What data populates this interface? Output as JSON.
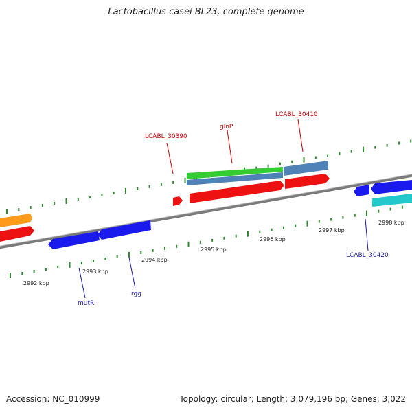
{
  "title": "Lactobacillus casei BL23, complete genome",
  "footer": {
    "accession": "Accession: NC_010999",
    "topology": "Topology: circular; Length: 3,079,196 bp; Genes: 3,022"
  },
  "colors": {
    "backbone": "#7a7a7a",
    "tick": "#2e8b2e",
    "forward_label": "#cc0000",
    "reverse_label": "#1a1aaa",
    "red_gene": "#ee1111",
    "blue_gene": "#1a1aee",
    "green_gene": "#33cc33",
    "steel_gene": "#4f83b8",
    "cyan_gene": "#22c8cc",
    "orange_gene": "#ff9a1a"
  },
  "scale_labels": [
    "2992 kbp",
    "2993 kbp",
    "2994 kbp",
    "2995 kbp",
    "2996 kbp",
    "2997 kbp",
    "2998 kbp"
  ],
  "gene_labels": [
    {
      "text": "LCABL_30390",
      "strand": "forward"
    },
    {
      "text": "glnP",
      "strand": "forward"
    },
    {
      "text": "LCABL_30410",
      "strand": "forward"
    },
    {
      "text": "mutR",
      "strand": "reverse"
    },
    {
      "text": "rgg",
      "strand": "reverse"
    },
    {
      "text": "LCABL_30420",
      "strand": "reverse"
    }
  ]
}
